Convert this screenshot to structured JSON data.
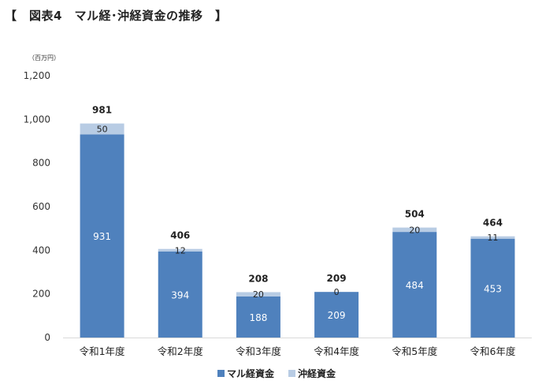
{
  "title": "【　図表4　マル経･沖経資金の推移　】",
  "chart_data": {
    "type": "bar",
    "stacked": true,
    "unit_label": "（百万円）",
    "categories": [
      "令和1年度",
      "令和2年度",
      "令和3年度",
      "令和4年度",
      "令和5年度",
      "令和6年度"
    ],
    "series": [
      {
        "name": "マル経資金",
        "values": [
          931,
          394,
          188,
          209,
          484,
          453
        ],
        "color": "#4f81bd"
      },
      {
        "name": "沖経資金",
        "values": [
          50,
          12,
          20,
          0,
          20,
          11
        ],
        "color": "#b8cce4"
      }
    ],
    "totals": [
      981,
      406,
      208,
      209,
      504,
      464
    ],
    "ylim": [
      0,
      1200
    ],
    "yticks": [
      0,
      200,
      400,
      600,
      800,
      1000,
      1200
    ],
    "ytick_labels": [
      "0",
      "200",
      "400",
      "600",
      "800",
      "1,000",
      "1,200"
    ],
    "grid": false,
    "legend": "bottom-center"
  }
}
